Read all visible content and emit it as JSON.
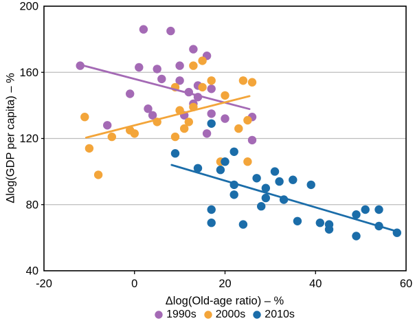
{
  "chart_data": {
    "type": "scatter",
    "title": "",
    "xlabel": "Δlog(Old-age ratio) – %",
    "ylabel": "Δlog(GDP per capita) – %",
    "xlim": [
      -20,
      60
    ],
    "ylim": [
      40,
      200
    ],
    "xticks": [
      -20,
      0,
      20,
      40,
      60
    ],
    "yticks": [
      40,
      80,
      120,
      160,
      200
    ],
    "grid": "horizontal-only",
    "legend_position": "bottom-center",
    "colors": {
      "grid": "#bdbdbd",
      "frame": "#000000",
      "text": "#000000"
    },
    "series": [
      {
        "name": "1990s",
        "color": "#a46ab5",
        "points": [
          [
            -12,
            164
          ],
          [
            2,
            186
          ],
          [
            8,
            185
          ],
          [
            1,
            163
          ],
          [
            5,
            162
          ],
          [
            6,
            156
          ],
          [
            13,
            174
          ],
          [
            16,
            170
          ],
          [
            10,
            164
          ],
          [
            10,
            155
          ],
          [
            -6,
            128
          ],
          [
            -1,
            147
          ],
          [
            3,
            138
          ],
          [
            4,
            134
          ],
          [
            11,
            134
          ],
          [
            17,
            135
          ],
          [
            14,
            152
          ],
          [
            12,
            148
          ],
          [
            14,
            145
          ],
          [
            13,
            141
          ],
          [
            17,
            150
          ],
          [
            16,
            123
          ],
          [
            20,
            132
          ],
          [
            26,
            133
          ],
          [
            26,
            119
          ]
        ],
        "trendline": {
          "x1": -11.7,
          "y1": 164.4,
          "x2": 25.4,
          "y2": 137.8
        }
      },
      {
        "name": "2000s",
        "color": "#f3a53a",
        "points": [
          [
            -11,
            133
          ],
          [
            -10,
            114
          ],
          [
            -8,
            98
          ],
          [
            -5,
            121
          ],
          [
            -1,
            125
          ],
          [
            0,
            123
          ],
          [
            5,
            130
          ],
          [
            9,
            121
          ],
          [
            9,
            151
          ],
          [
            10,
            137
          ],
          [
            11,
            126
          ],
          [
            12,
            130
          ],
          [
            13,
            139
          ],
          [
            13,
            164
          ],
          [
            15,
            167
          ],
          [
            15,
            151
          ],
          [
            17,
            155
          ],
          [
            20,
            146
          ],
          [
            24,
            155
          ],
          [
            26,
            154
          ],
          [
            23,
            126
          ],
          [
            25,
            131
          ],
          [
            19,
            106
          ],
          [
            25,
            106
          ]
        ],
        "trendline": {
          "x1": -10.7,
          "y1": 120.5,
          "x2": 25.4,
          "y2": 145.6
        }
      },
      {
        "name": "2010s",
        "color": "#1b6da9",
        "points": [
          [
            9,
            111
          ],
          [
            17,
            129
          ],
          [
            22,
            112
          ],
          [
            20,
            106
          ],
          [
            19,
            101
          ],
          [
            14,
            102
          ],
          [
            22,
            92
          ],
          [
            22,
            86
          ],
          [
            27,
            96
          ],
          [
            31,
            100
          ],
          [
            32,
            94
          ],
          [
            35,
            95
          ],
          [
            29,
            90
          ],
          [
            29,
            84
          ],
          [
            33,
            83
          ],
          [
            28,
            79
          ],
          [
            17,
            77
          ],
          [
            17,
            69
          ],
          [
            24,
            68
          ],
          [
            39,
            92
          ],
          [
            36,
            70
          ],
          [
            41,
            69
          ],
          [
            43,
            68
          ],
          [
            43,
            65
          ],
          [
            49,
            74
          ],
          [
            51,
            77
          ],
          [
            54,
            77
          ],
          [
            54,
            67
          ],
          [
            58,
            63
          ],
          [
            49,
            61
          ]
        ],
        "trendline": {
          "x1": 8.2,
          "y1": 104.0,
          "x2": 57.6,
          "y2": 64.1
        }
      }
    ]
  }
}
